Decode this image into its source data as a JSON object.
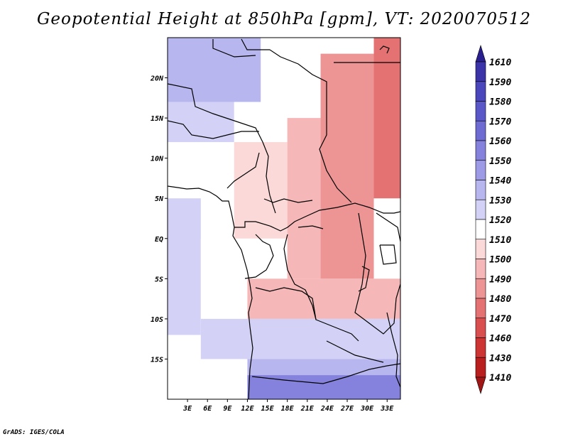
{
  "title": "Geopotential Height at 850hPa [gpm], VT: 2020070512",
  "credit": "GrADS: IGES/COLA",
  "chart_data": {
    "type": "heatmap",
    "title": "Geopotential Height at 850hPa [gpm], VT: 2020070512",
    "variable": "Geopotential Height",
    "level": "850hPa",
    "units": "gpm",
    "valid_time": "2020070512",
    "lon_range": [
      0,
      35
    ],
    "lat_range": [
      -20,
      25
    ],
    "lat_ticks": [
      {
        "value": 20,
        "label": "20N"
      },
      {
        "value": 15,
        "label": "15N"
      },
      {
        "value": 10,
        "label": "10N"
      },
      {
        "value": 5,
        "label": "5N"
      },
      {
        "value": 0,
        "label": "EQ"
      },
      {
        "value": -5,
        "label": "5S"
      },
      {
        "value": -10,
        "label": "10S"
      },
      {
        "value": -15,
        "label": "15S"
      }
    ],
    "lon_ticks": [
      {
        "value": 3,
        "label": "3E"
      },
      {
        "value": 6,
        "label": "6E"
      },
      {
        "value": 9,
        "label": "9E"
      },
      {
        "value": 12,
        "label": "12E"
      },
      {
        "value": 15,
        "label": "15E"
      },
      {
        "value": 18,
        "label": "18E"
      },
      {
        "value": 21,
        "label": "21E"
      },
      {
        "value": 24,
        "label": "24E"
      },
      {
        "value": 27,
        "label": "27E"
      },
      {
        "value": 30,
        "label": "30E"
      },
      {
        "value": 33,
        "label": "33E"
      }
    ],
    "colorbar": {
      "levels": [
        1610,
        1590,
        1580,
        1570,
        1560,
        1550,
        1540,
        1530,
        1520,
        1510,
        1500,
        1490,
        1480,
        1470,
        1460,
        1430,
        1410
      ],
      "colors": [
        "#2a1f8f",
        "#3b34a8",
        "#4a46bb",
        "#5a58c8",
        "#6e6bd3",
        "#8582dd",
        "#9d9ae6",
        "#b8b6ee",
        "#d3d2f6",
        "#ffffff",
        "#fbd9d9",
        "#f5b7b7",
        "#ed9494",
        "#e47272",
        "#d94f4f",
        "#cd3434",
        "#b91f1f",
        "#a01515"
      ]
    },
    "regions": [
      {
        "level": 1560,
        "lon": [
          0,
          6
        ],
        "lat": [
          20,
          25
        ]
      },
      {
        "level": 1540,
        "lon": [
          0,
          14
        ],
        "lat": [
          17,
          25
        ]
      },
      {
        "level": 1530,
        "lon": [
          0,
          10
        ],
        "lat": [
          12,
          17
        ]
      },
      {
        "level": 1530,
        "lon": [
          0,
          5
        ],
        "lat": [
          -12,
          5
        ]
      },
      {
        "level": 1520,
        "lon": [
          5,
          12
        ],
        "lat": [
          -12,
          0
        ]
      },
      {
        "level": 1510,
        "lon": [
          10,
          18
        ],
        "lat": [
          0,
          12
        ]
      },
      {
        "level": 1500,
        "lon": [
          18,
          23
        ],
        "lat": [
          -5,
          15
        ]
      },
      {
        "level": 1490,
        "lon": [
          23,
          31
        ],
        "lat": [
          -5,
          23
        ]
      },
      {
        "level": 1480,
        "lon": [
          31,
          35
        ],
        "lat": [
          5,
          25
        ]
      },
      {
        "level": 1500,
        "lon": [
          12,
          35
        ],
        "lat": [
          -10,
          -5
        ]
      },
      {
        "level": 1530,
        "lon": [
          5,
          35
        ],
        "lat": [
          -15,
          -10
        ]
      },
      {
        "level": 1540,
        "lon": [
          12,
          35
        ],
        "lat": [
          -17,
          -15
        ]
      },
      {
        "level": 1560,
        "lon": [
          12,
          35
        ],
        "lat": [
          -20,
          -17
        ]
      }
    ]
  }
}
